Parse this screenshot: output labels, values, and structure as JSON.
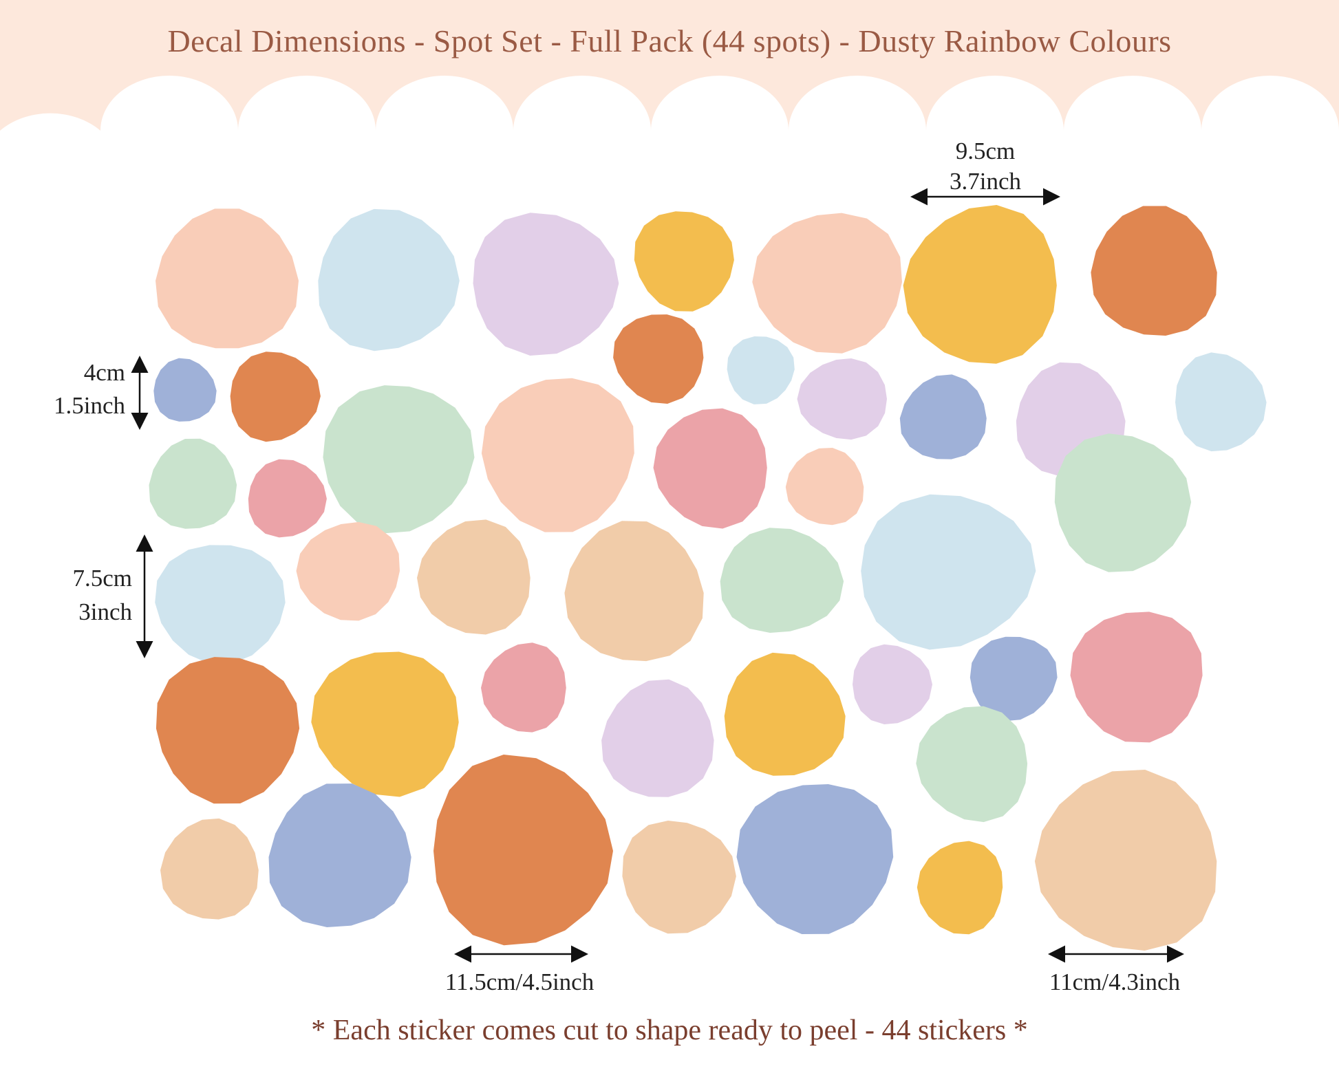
{
  "title": "Decal Dimensions - Spot Set - Full Pack (44 spots) - Dusty Rainbow Colours",
  "colors": {
    "header_bg": "#fde8dc",
    "title_text": "#9a5a44",
    "note_text": "#7a3e2e",
    "peach": "#f9cdb8",
    "light_blue": "#cfe4ee",
    "lilac": "#e2cfe8",
    "mustard": "#f3bd4e",
    "burnt_orange": "#e08650",
    "periwinkle": "#9fb1d8",
    "mint": "#c9e3cd",
    "rose": "#eba3a8",
    "sand": "#f1cca9"
  },
  "dimensions": {
    "top_width_cm": "9.5cm",
    "top_width_inch": "3.7inch",
    "small_height_cm": "4cm",
    "small_height_inch": "1.5inch",
    "medium_height_cm": "7.5cm",
    "medium_height_inch": "3inch",
    "large_width_bottom_left": "11.5cm/4.5inch",
    "large_width_bottom_right": "11cm/4.3inch"
  },
  "footer_note": "* Each sticker comes cut to shape ready to peel - 44 stickers *"
}
